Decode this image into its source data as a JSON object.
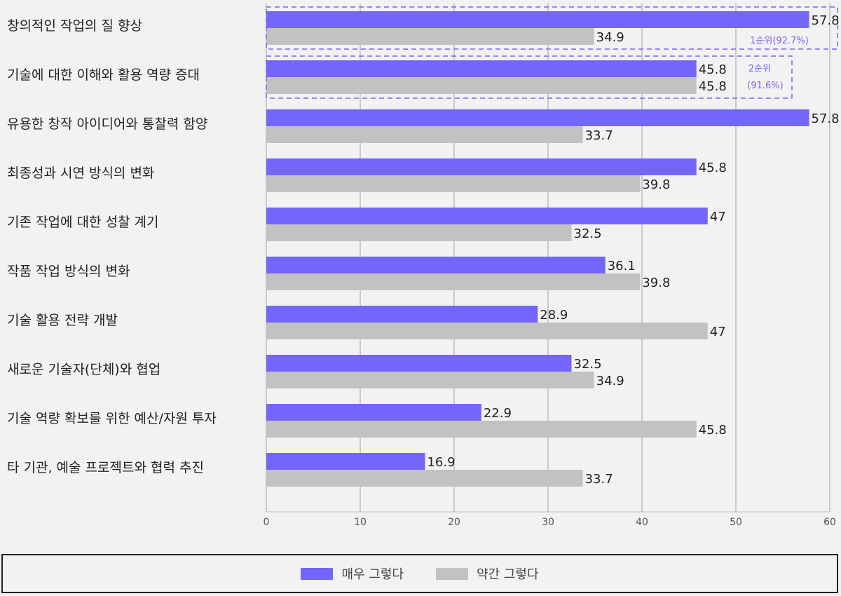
{
  "chart_data": {
    "type": "bar",
    "orientation": "horizontal",
    "categories": [
      "창의적인 작업의 질 향상",
      "기술에 대한 이해와 활용 역량 증대",
      "유용한 창작 아이디어와 통찰력 함양",
      "최종성과 시연 방식의 변화",
      "기존 작업에 대한 성찰 계기",
      "작품 작업 방식의 변화",
      "기술 활용 전략 개발",
      "새로운 기술자(단체)와 협업",
      "기술 역량 확보를 위한 예산/자원 투자",
      "타 기관, 예술 프로젝트와 협력 추진"
    ],
    "series": [
      {
        "name": "매우 그렇다",
        "color": "#7466fa",
        "values": [
          57.8,
          45.8,
          57.8,
          45.8,
          47,
          36.1,
          28.9,
          32.5,
          22.9,
          16.9
        ],
        "labels": [
          "57.8",
          "45.8",
          "57.8",
          "45.8",
          "47",
          "36.1",
          "28.9",
          "32.5",
          "22.9",
          "16.9"
        ]
      },
      {
        "name": "약간 그렇다",
        "color": "#c3c2c3",
        "values": [
          34.9,
          45.8,
          33.7,
          39.8,
          32.5,
          39.8,
          47,
          34.9,
          45.8,
          33.7
        ],
        "labels": [
          "34.9",
          "45.8",
          "33.7",
          "39.8",
          "32.5",
          "39.8",
          "47",
          "34.9",
          "45.8",
          "33.7"
        ]
      }
    ],
    "xlim": [
      0,
      60
    ],
    "xticks": [
      0,
      10,
      20,
      30,
      40,
      50,
      60
    ],
    "grid": true,
    "legend_position": "bottom",
    "annotations": [
      {
        "category_index": 0,
        "lines": [
          "1순위(92.7%)"
        ],
        "color": "#7466fa"
      },
      {
        "category_index": 1,
        "lines": [
          "2순위",
          "(91.6%)"
        ],
        "color": "#7466fa"
      }
    ]
  },
  "legend": {
    "items": [
      {
        "label": "매우 그렇다",
        "color": "#7466fa"
      },
      {
        "label": "약간 그렇다",
        "color": "#c3c2c3"
      }
    ]
  },
  "colors": {
    "background": "#f2f2f2",
    "grid": "#bdbdbd",
    "text": "#222222"
  }
}
